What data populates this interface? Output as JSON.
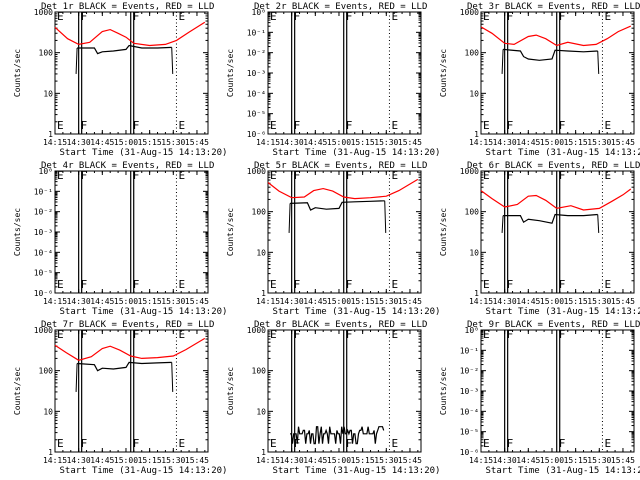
{
  "chart_data": [
    {
      "type": "line",
      "title": "Det 1r BLACK = Events, RED = LLD",
      "xlabel": "Start Time (31-Aug-15 14:13:20)",
      "ylabel": "Counts/sec",
      "yscale": "log",
      "ylim": [
        1,
        1000
      ],
      "xlim": [
        "14:15",
        "15:52"
      ],
      "xticks": [
        "14:15",
        "14:30",
        "14:45",
        "15:00",
        "15:15",
        "15:30",
        "15:45"
      ],
      "yticks": [
        "1",
        "10",
        "100",
        "1000"
      ],
      "markers": [
        {
          "label": "E",
          "time": "14:15"
        },
        {
          "label": "F",
          "time": "14:30"
        },
        {
          "label": "F",
          "time": "15:03"
        },
        {
          "label": "E",
          "time": "15:32"
        }
      ],
      "series": [
        {
          "name": "LLD",
          "color": "#ff0000",
          "points": [
            [
              "14:15",
              420
            ],
            [
              "14:23",
              220
            ],
            [
              "14:30",
              160
            ],
            [
              "14:37",
              180
            ],
            [
              "14:45",
              330
            ],
            [
              "14:50",
              370
            ],
            [
              "14:55",
              300
            ],
            [
              "15:00",
              240
            ],
            [
              "15:05",
              170
            ],
            [
              "15:15",
              150
            ],
            [
              "15:25",
              160
            ],
            [
              "15:32",
              200
            ],
            [
              "15:40",
              320
            ],
            [
              "15:50",
              560
            ]
          ]
        },
        {
          "name": "Events",
          "color": "#000000",
          "points": [
            [
              "14:29",
              130
            ],
            [
              "14:40",
              130
            ],
            [
              "14:42",
              95
            ],
            [
              "14:45",
              105
            ],
            [
              "14:52",
              110
            ],
            [
              "15:00",
              120
            ],
            [
              "15:02",
              150
            ],
            [
              "15:10",
              130
            ],
            [
              "15:20",
              130
            ],
            [
              "15:29",
              135
            ]
          ]
        }
      ]
    },
    {
      "type": "line",
      "title": "Det 2r BLACK = Events, RED = LLD",
      "xlabel": "Start Time (31-Aug-15 14:13:20)",
      "ylabel": "Counts/sec",
      "yscale": "log",
      "ylim": [
        1e-06,
        1
      ],
      "xlim": [
        "14:15",
        "15:52"
      ],
      "xticks": [
        "14:15",
        "14:30",
        "14:45",
        "15:00",
        "15:15",
        "15:30",
        "15:45"
      ],
      "yticks": [
        "10⁰",
        "10⁻¹",
        "10⁻²",
        "10⁻³",
        "10⁻⁴",
        "10⁻⁵",
        "10⁻⁶"
      ],
      "markers": [
        {
          "label": "E",
          "time": "14:15"
        },
        {
          "label": "F",
          "time": "14:30"
        },
        {
          "label": "F",
          "time": "15:03"
        },
        {
          "label": "E",
          "time": "15:32"
        }
      ],
      "series": []
    },
    {
      "type": "line",
      "title": "Det 3r BLACK = Events, RED = LLD",
      "xlabel": "Start Time (31-Aug-15 14:13:20)",
      "ylabel": "Counts/sec",
      "yscale": "log",
      "ylim": [
        1,
        1000
      ],
      "xlim": [
        "14:15",
        "15:52"
      ],
      "xticks": [
        "14:15",
        "14:30",
        "14:45",
        "15:00",
        "15:15",
        "15:30",
        "15:45"
      ],
      "yticks": [
        "1",
        "10",
        "100",
        "1000"
      ],
      "markers": [
        {
          "label": "E",
          "time": "14:15"
        },
        {
          "label": "F",
          "time": "14:30"
        },
        {
          "label": "F",
          "time": "15:03"
        },
        {
          "label": "E",
          "time": "15:32"
        }
      ],
      "series": [
        {
          "name": "LLD",
          "color": "#ff0000",
          "points": [
            [
              "14:15",
              430
            ],
            [
              "14:22",
              300
            ],
            [
              "14:30",
              170
            ],
            [
              "14:36",
              160
            ],
            [
              "14:45",
              250
            ],
            [
              "14:50",
              270
            ],
            [
              "14:56",
              220
            ],
            [
              "15:03",
              150
            ],
            [
              "15:10",
              180
            ],
            [
              "15:20",
              150
            ],
            [
              "15:28",
              160
            ],
            [
              "15:35",
              220
            ],
            [
              "15:42",
              330
            ],
            [
              "15:50",
              450
            ]
          ]
        },
        {
          "name": "Events",
          "color": "#000000",
          "points": [
            [
              "14:29",
              120
            ],
            [
              "14:40",
              110
            ],
            [
              "14:42",
              80
            ],
            [
              "14:45",
              70
            ],
            [
              "14:52",
              65
            ],
            [
              "15:00",
              70
            ],
            [
              "15:02",
              115
            ],
            [
              "15:10",
              110
            ],
            [
              "15:20",
              105
            ],
            [
              "15:29",
              110
            ]
          ]
        }
      ]
    },
    {
      "type": "line",
      "title": "Det 4r BLACK = Events, RED = LLD",
      "xlabel": "Start Time (31-Aug-15 14:13:20)",
      "ylabel": "Counts/sec",
      "yscale": "log",
      "ylim": [
        1e-06,
        1
      ],
      "xlim": [
        "14:15",
        "15:52"
      ],
      "xticks": [
        "14:15",
        "14:30",
        "14:45",
        "15:00",
        "15:15",
        "15:30",
        "15:45"
      ],
      "yticks": [
        "10⁰",
        "10⁻¹",
        "10⁻²",
        "10⁻³",
        "10⁻⁴",
        "10⁻⁵",
        "10⁻⁶"
      ],
      "markers": [
        {
          "label": "E",
          "time": "14:15"
        },
        {
          "label": "F",
          "time": "14:30"
        },
        {
          "label": "F",
          "time": "15:03"
        },
        {
          "label": "E",
          "time": "15:32"
        }
      ],
      "series": []
    },
    {
      "type": "line",
      "title": "Det 5r BLACK = Events, RED = LLD",
      "xlabel": "Start Time (31-Aug-15 14:13:20)",
      "ylabel": "Counts/sec",
      "yscale": "log",
      "ylim": [
        1,
        1000
      ],
      "xlim": [
        "14:15",
        "15:52"
      ],
      "xticks": [
        "14:15",
        "14:30",
        "14:45",
        "15:00",
        "15:15",
        "15:30",
        "15:45"
      ],
      "yticks": [
        "1",
        "10",
        "100",
        "1000"
      ],
      "markers": [
        {
          "label": "E",
          "time": "14:15"
        },
        {
          "label": "F",
          "time": "14:30"
        },
        {
          "label": "F",
          "time": "15:03"
        },
        {
          "label": "E",
          "time": "15:32"
        }
      ],
      "series": [
        {
          "name": "LLD",
          "color": "#ff0000",
          "points": [
            [
              "14:15",
              520
            ],
            [
              "14:22",
              320
            ],
            [
              "14:30",
              220
            ],
            [
              "14:38",
              230
            ],
            [
              "14:44",
              330
            ],
            [
              "14:50",
              370
            ],
            [
              "14:56",
              320
            ],
            [
              "15:03",
              230
            ],
            [
              "15:10",
              210
            ],
            [
              "15:20",
              220
            ],
            [
              "15:30",
              240
            ],
            [
              "15:38",
              330
            ],
            [
              "15:45",
              480
            ],
            [
              "15:50",
              620
            ]
          ]
        },
        {
          "name": "Events",
          "color": "#000000",
          "points": [
            [
              "14:29",
              160
            ],
            [
              "14:40",
              165
            ],
            [
              "14:42",
              110
            ],
            [
              "14:45",
              125
            ],
            [
              "14:52",
              115
            ],
            [
              "15:00",
              120
            ],
            [
              "15:02",
              170
            ],
            [
              "15:10",
              175
            ],
            [
              "15:20",
              180
            ],
            [
              "15:29",
              185
            ]
          ]
        }
      ]
    },
    {
      "type": "line",
      "title": "Det 6r BLACK = Events, RED = LLD",
      "xlabel": "Start Time (31-Aug-15 14:13:20)",
      "ylabel": "Counts/sec",
      "yscale": "log",
      "ylim": [
        1,
        1000
      ],
      "xlim": [
        "14:15",
        "15:52"
      ],
      "xticks": [
        "14:15",
        "14:30",
        "14:45",
        "15:00",
        "15:15",
        "15:30",
        "15:45"
      ],
      "yticks": [
        "1",
        "10",
        "100",
        "1000"
      ],
      "markers": [
        {
          "label": "E",
          "time": "14:15"
        },
        {
          "label": "F",
          "time": "14:30"
        },
        {
          "label": "F",
          "time": "15:03"
        },
        {
          "label": "E",
          "time": "15:32"
        }
      ],
      "series": [
        {
          "name": "LLD",
          "color": "#ff0000",
          "points": [
            [
              "14:15",
              330
            ],
            [
              "14:22",
              210
            ],
            [
              "14:30",
              130
            ],
            [
              "14:38",
              150
            ],
            [
              "14:45",
              240
            ],
            [
              "14:50",
              250
            ],
            [
              "14:56",
              190
            ],
            [
              "15:03",
              120
            ],
            [
              "15:12",
              140
            ],
            [
              "15:20",
              110
            ],
            [
              "15:30",
              120
            ],
            [
              "15:38",
              180
            ],
            [
              "15:45",
              260
            ],
            [
              "15:50",
              360
            ]
          ]
        },
        {
          "name": "Events",
          "color": "#000000",
          "points": [
            [
              "14:29",
              80
            ],
            [
              "14:40",
              80
            ],
            [
              "14:42",
              55
            ],
            [
              "14:45",
              65
            ],
            [
              "14:52",
              60
            ],
            [
              "15:00",
              52
            ],
            [
              "15:02",
              85
            ],
            [
              "15:10",
              80
            ],
            [
              "15:20",
              80
            ],
            [
              "15:29",
              85
            ]
          ]
        }
      ]
    },
    {
      "type": "line",
      "title": "Det 7r BLACK = Events, RED = LLD",
      "xlabel": "Start Time (31-Aug-15 14:13:20)",
      "ylabel": "Counts/sec",
      "yscale": "log",
      "ylim": [
        1,
        1000
      ],
      "xlim": [
        "14:15",
        "15:52"
      ],
      "xticks": [
        "14:15",
        "14:30",
        "14:45",
        "15:00",
        "15:15",
        "15:30",
        "15:45"
      ],
      "yticks": [
        "1",
        "10",
        "100",
        "1000"
      ],
      "markers": [
        {
          "label": "E",
          "time": "14:15"
        },
        {
          "label": "F",
          "time": "14:30"
        },
        {
          "label": "F",
          "time": "15:03"
        },
        {
          "label": "E",
          "time": "15:32"
        }
      ],
      "series": [
        {
          "name": "LLD",
          "color": "#ff0000",
          "points": [
            [
              "14:15",
              420
            ],
            [
              "14:22",
              280
            ],
            [
              "14:30",
              180
            ],
            [
              "14:38",
              220
            ],
            [
              "14:45",
              350
            ],
            [
              "14:50",
              400
            ],
            [
              "14:56",
              320
            ],
            [
              "15:03",
              230
            ],
            [
              "15:10",
              200
            ],
            [
              "15:20",
              210
            ],
            [
              "15:30",
              230
            ],
            [
              "15:38",
              330
            ],
            [
              "15:45",
              480
            ],
            [
              "15:50",
              620
            ]
          ]
        },
        {
          "name": "Events",
          "color": "#000000",
          "points": [
            [
              "14:29",
              150
            ],
            [
              "14:40",
              140
            ],
            [
              "14:42",
              100
            ],
            [
              "14:45",
              115
            ],
            [
              "14:52",
              110
            ],
            [
              "15:00",
              120
            ],
            [
              "15:02",
              160
            ],
            [
              "15:10",
              150
            ],
            [
              "15:20",
              155
            ],
            [
              "15:29",
              160
            ]
          ]
        }
      ]
    },
    {
      "type": "line",
      "title": "Det 8r BLACK = Events, RED = LLD",
      "xlabel": "Start Time (31-Aug-15 14:13:20)",
      "ylabel": "Counts/sec",
      "yscale": "log",
      "ylim": [
        1,
        1000
      ],
      "xlim": [
        "14:15",
        "15:52"
      ],
      "xticks": [
        "14:15",
        "14:30",
        "14:45",
        "15:00",
        "15:15",
        "15:30",
        "15:45"
      ],
      "yticks": [
        "1",
        "10",
        "100",
        "1000"
      ],
      "markers": [
        {
          "label": "E",
          "time": "14:15"
        },
        {
          "label": "F",
          "time": "14:30"
        },
        {
          "label": "F",
          "time": "15:03"
        },
        {
          "label": "E",
          "time": "15:32"
        }
      ],
      "series": [
        {
          "name": "Events",
          "color": "#000000",
          "noisy": true,
          "points": [
            [
              "14:29",
              2.8
            ],
            [
              "14:40",
              2.8
            ],
            [
              "14:50",
              2.8
            ],
            [
              "15:00",
              2.8
            ],
            [
              "15:02",
              2.8
            ],
            [
              "15:10",
              2.8
            ],
            [
              "15:20",
              2.8
            ],
            [
              "15:29",
              2.8
            ]
          ]
        }
      ]
    },
    {
      "type": "line",
      "title": "Det 9r BLACK = Events, RED = LLD",
      "xlabel": "Start Time (31-Aug-15 14:13:20)",
      "ylabel": "Counts/sec",
      "yscale": "log",
      "ylim": [
        1e-06,
        1
      ],
      "xlim": [
        "14:15",
        "15:52"
      ],
      "xticks": [
        "14:15",
        "14:30",
        "14:45",
        "15:00",
        "15:15",
        "15:30",
        "15:45"
      ],
      "yticks": [
        "10⁰",
        "10⁻¹",
        "10⁻²",
        "10⁻³",
        "10⁻⁴",
        "10⁻⁵",
        "10⁻⁶"
      ],
      "markers": [
        {
          "label": "E",
          "time": "14:15"
        },
        {
          "label": "F",
          "time": "14:30"
        },
        {
          "label": "F",
          "time": "15:03"
        },
        {
          "label": "E",
          "time": "15:32"
        }
      ],
      "series": []
    }
  ]
}
